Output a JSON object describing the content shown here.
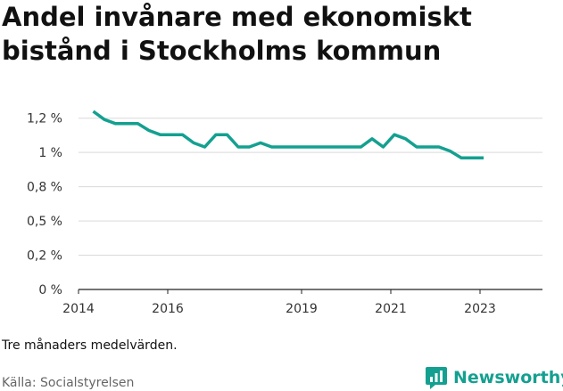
{
  "title": "Andel invånare med ekonomiskt bistånd i Stockholms kommun",
  "note": "Tre månaders medelvärden.",
  "source": "Källa: Socialstyrelsen",
  "brand": {
    "name": "Newsworthy",
    "icon": "newsworthy-logo-icon",
    "color": "#14a090"
  },
  "chart_data": {
    "type": "line",
    "title": "Andel invånare med ekonomiskt bistånd i Stockholms kommun",
    "xlabel": "",
    "ylabel": "",
    "line_color": "#14a090",
    "grid": true,
    "y_ticks": [
      {
        "value": 0,
        "label": "0 %"
      },
      {
        "value": 0.25,
        "label": "0,2 %"
      },
      {
        "value": 0.5,
        "label": "0,5 %"
      },
      {
        "value": 0.75,
        "label": "0,8 %"
      },
      {
        "value": 1.0,
        "label": "1 %"
      },
      {
        "value": 1.25,
        "label": "1,2 %"
      }
    ],
    "x_ticks": [
      {
        "value": 2014,
        "label": "2014"
      },
      {
        "value": 2016,
        "label": "2016"
      },
      {
        "value": 2019,
        "label": "2019"
      },
      {
        "value": 2021,
        "label": "2021"
      },
      {
        "value": 2023,
        "label": "2023"
      }
    ],
    "xlim": [
      2014,
      2024
    ],
    "ylim": [
      0,
      1.3
    ],
    "series": [
      {
        "x": [
          2014.33,
          2014.58,
          2014.83,
          2015.08,
          2015.33,
          2015.58,
          2015.83,
          2016.08,
          2016.33,
          2016.58,
          2016.83,
          2017.08,
          2017.33,
          2017.58,
          2017.83,
          2018.08,
          2018.33,
          2018.58,
          2018.83,
          2019.08,
          2019.33,
          2019.58,
          2019.83,
          2020.08,
          2020.33,
          2020.58,
          2020.83,
          2021.08,
          2021.33,
          2021.58,
          2021.83,
          2022.08,
          2022.33,
          2022.58,
          2022.83,
          2023.08
        ],
        "y": [
          1.3,
          1.24,
          1.21,
          1.21,
          1.21,
          1.16,
          1.13,
          1.13,
          1.13,
          1.07,
          1.04,
          1.13,
          1.13,
          1.04,
          1.04,
          1.07,
          1.04,
          1.04,
          1.04,
          1.04,
          1.04,
          1.04,
          1.04,
          1.04,
          1.04,
          1.1,
          1.04,
          1.13,
          1.1,
          1.04,
          1.04,
          1.04,
          1.01,
          0.96,
          0.96,
          0.96
        ]
      }
    ]
  }
}
